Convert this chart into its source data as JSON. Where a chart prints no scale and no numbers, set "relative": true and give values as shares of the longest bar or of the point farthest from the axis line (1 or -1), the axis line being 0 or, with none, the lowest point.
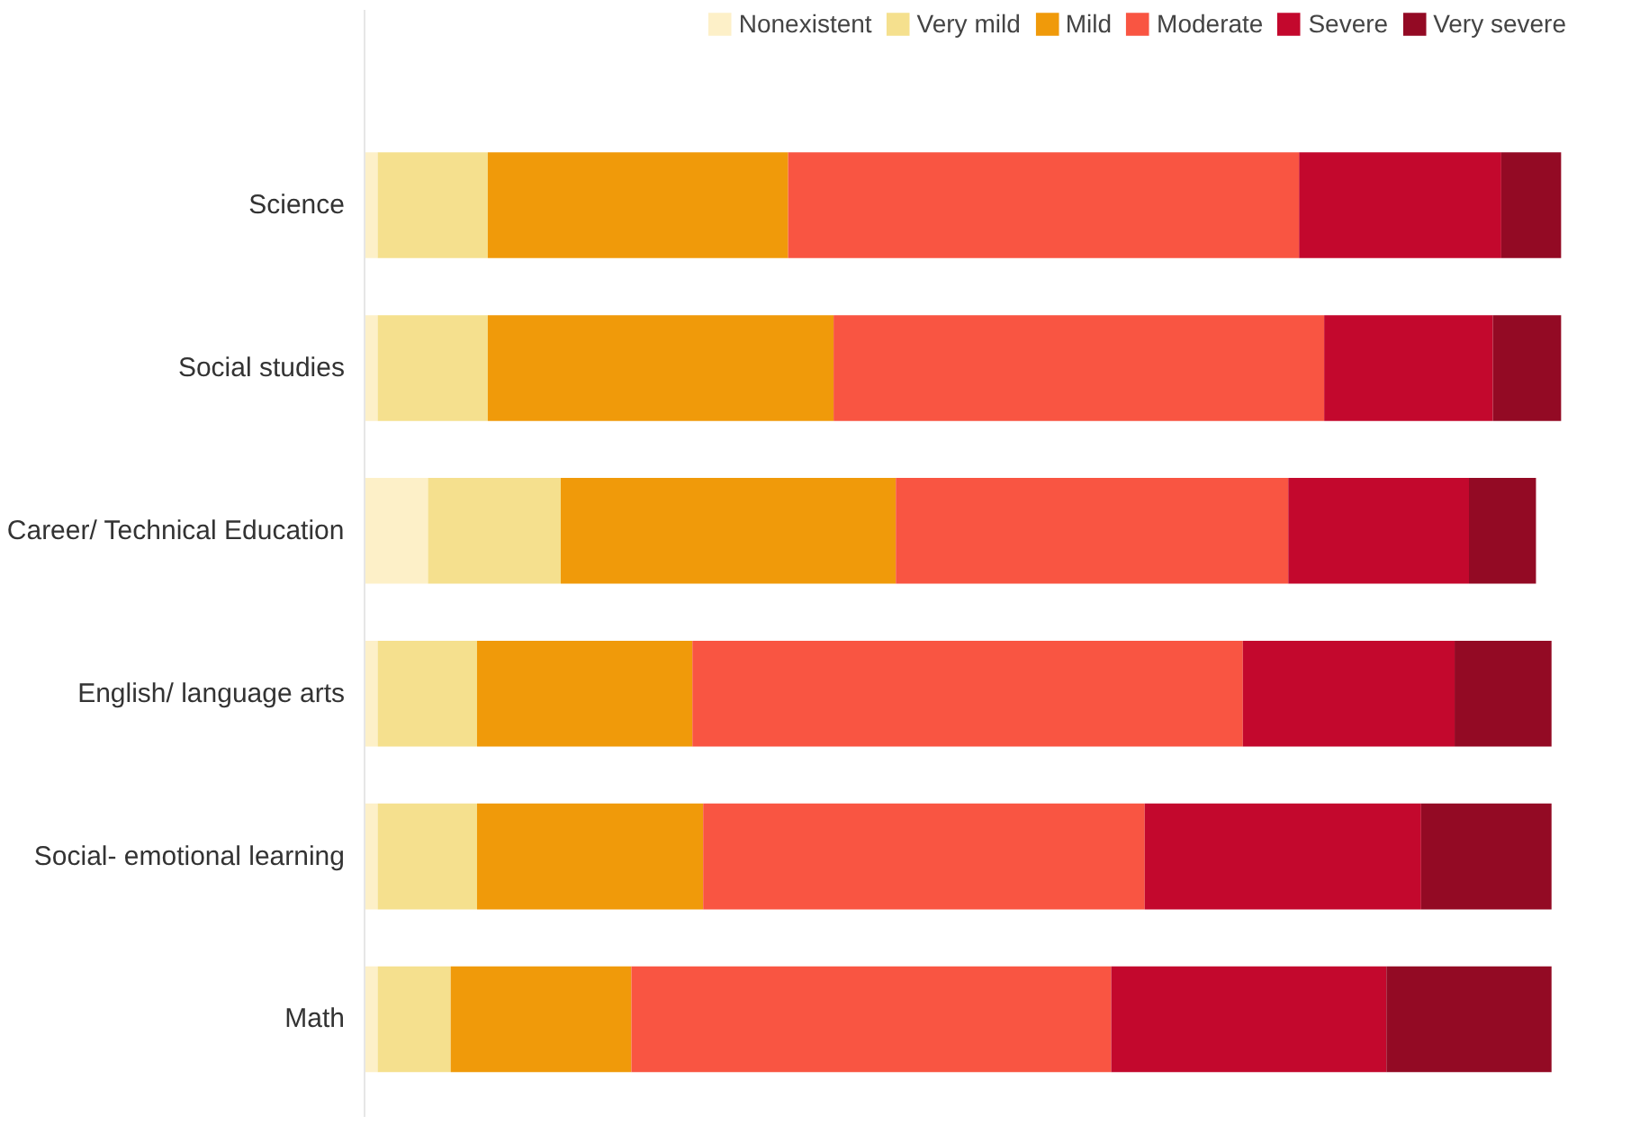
{
  "chart_data": {
    "type": "bar",
    "orientation": "horizontal",
    "stacked": true,
    "relative": true,
    "legend": "top right",
    "categories": [
      "Science",
      "Social studies",
      "Career/ Technical Education",
      "English/ language arts",
      "Social- emotional learning",
      "Math"
    ],
    "series": [
      {
        "name": "Nonexistent",
        "color": "#fdf0c8",
        "values": [
          0.011,
          0.011,
          0.053,
          0.011,
          0.011,
          0.011
        ]
      },
      {
        "name": "Very mild",
        "color": "#f5e08e",
        "values": [
          0.092,
          0.092,
          0.111,
          0.083,
          0.083,
          0.061
        ]
      },
      {
        "name": "Mild",
        "color": "#f09a0a",
        "values": [
          0.251,
          0.289,
          0.28,
          0.18,
          0.189,
          0.151
        ]
      },
      {
        "name": "Moderate",
        "color": "#f95542",
        "values": [
          0.427,
          0.41,
          0.328,
          0.46,
          0.369,
          0.401
        ]
      },
      {
        "name": "Severe",
        "color": "#c3082d",
        "values": [
          0.169,
          0.141,
          0.151,
          0.177,
          0.231,
          0.23
        ]
      },
      {
        "name": "Very severe",
        "color": "#930a24",
        "values": [
          0.05,
          0.057,
          0.056,
          0.081,
          0.109,
          0.138
        ]
      }
    ]
  }
}
